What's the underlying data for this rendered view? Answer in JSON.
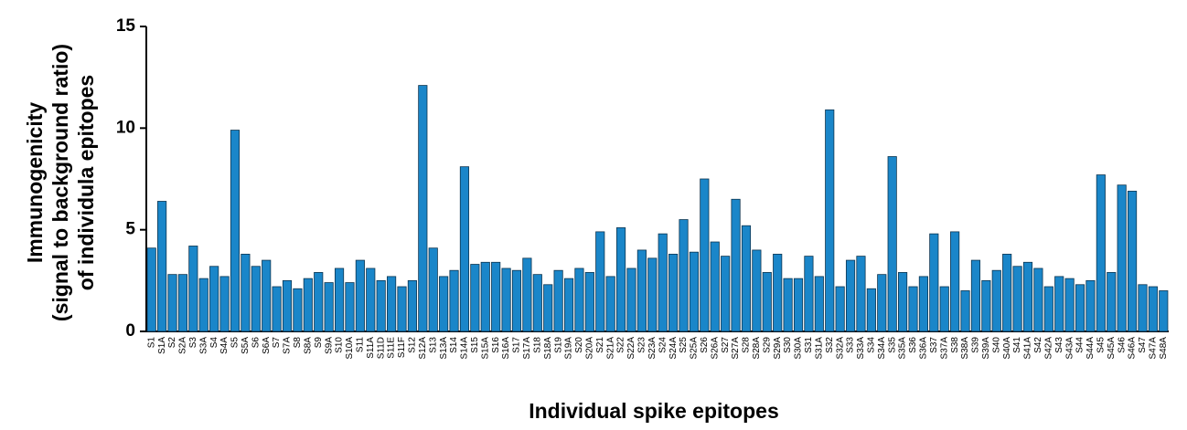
{
  "chart_data": {
    "type": "bar",
    "x_label": "Individual spike epitopes",
    "y_label": [
      "Immunogenicity",
      "(signal to background ratio)",
      "of individula epitopes"
    ],
    "color": "#1a86c9",
    "categories": [
      "S1",
      "S1A",
      "S2",
      "S2A",
      "S3",
      "S3A",
      "S4",
      "S4A",
      "S5",
      "S5A",
      "S6",
      "S6A",
      "S7",
      "S7A",
      "S8",
      "S8A",
      "S9",
      "S9A",
      "S10",
      "S10A",
      "S11",
      "S11A",
      "S11D",
      "S11E",
      "S11F",
      "S12",
      "S12A",
      "S13",
      "S13A",
      "S14",
      "S14A",
      "S15",
      "S15A",
      "S16",
      "S16A",
      "S17",
      "S17A",
      "S18",
      "S18A",
      "S19",
      "S19A",
      "S20",
      "S20A",
      "S21",
      "S21A",
      "S22",
      "S22A",
      "S23",
      "S23A",
      "S24",
      "S24A",
      "S25",
      "S25A",
      "S26",
      "S26A",
      "S27",
      "S27A",
      "S28",
      "S28A",
      "S29",
      "S29A",
      "S30",
      "S30A",
      "S31",
      "S31A",
      "S32",
      "S32A",
      "S33",
      "S33A",
      "S34",
      "S34A",
      "S35",
      "S35A",
      "S36",
      "S36A",
      "S37",
      "S37A",
      "S38",
      "S38A",
      "S39",
      "S39A",
      "S40",
      "S40A",
      "S41",
      "S41A",
      "S42",
      "S42A",
      "S43",
      "S43A",
      "S44",
      "S44A",
      "S45",
      "S45A",
      "S46",
      "S46A",
      "S47",
      "S47A",
      "S48A"
    ],
    "values": [
      4.1,
      6.4,
      2.8,
      2.8,
      4.2,
      2.6,
      3.2,
      2.7,
      9.9,
      3.8,
      3.2,
      3.5,
      2.2,
      2.5,
      2.1,
      2.6,
      2.9,
      2.4,
      3.1,
      2.4,
      3.5,
      3.1,
      2.5,
      2.7,
      2.2,
      2.5,
      12.1,
      4.1,
      2.7,
      3.0,
      8.1,
      3.3,
      3.4,
      3.4,
      3.1,
      3.0,
      3.6,
      2.8,
      2.3,
      3.0,
      2.6,
      3.1,
      2.9,
      4.9,
      2.7,
      5.1,
      3.1,
      4.0,
      3.6,
      4.8,
      3.8,
      5.5,
      3.9,
      7.5,
      4.4,
      3.7,
      6.5,
      5.2,
      4.0,
      2.9,
      3.8,
      2.6,
      2.6,
      3.7,
      2.7,
      10.9,
      2.2,
      3.5,
      3.7,
      2.1,
      2.8,
      8.6,
      2.9,
      2.2,
      2.7,
      4.8,
      2.2,
      4.9,
      2.0,
      3.5,
      2.5,
      3.0,
      3.8,
      3.2,
      3.4,
      3.1,
      2.2,
      2.7,
      2.6,
      2.3,
      2.5,
      7.7,
      2.9,
      7.2,
      6.9,
      2.3,
      2.2,
      2.0
    ],
    "ylim": [
      0,
      15
    ],
    "yticks": [
      0,
      5,
      10,
      15
    ]
  }
}
